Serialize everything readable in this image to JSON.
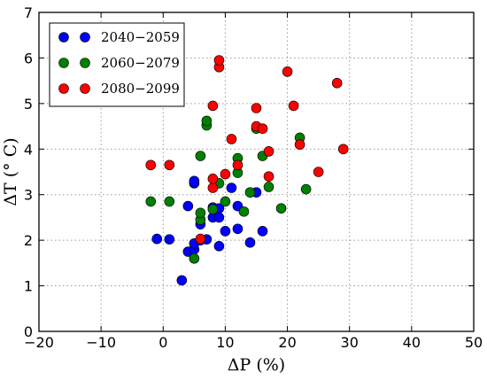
{
  "chart_data": {
    "type": "scatter",
    "title": "",
    "xlabel": "ΔP (%)",
    "ylabel": "ΔT (° C)",
    "xlim": [
      -20,
      50
    ],
    "ylim": [
      0,
      7
    ],
    "xticks": [
      -20,
      -10,
      0,
      10,
      20,
      30,
      40,
      50
    ],
    "yticks": [
      0,
      1,
      2,
      3,
      4,
      5,
      6,
      7
    ],
    "x_tick_labels": [
      "−20",
      "−10",
      "0",
      "10",
      "20",
      "30",
      "40",
      "50"
    ],
    "y_tick_labels": [
      "0",
      "1",
      "2",
      "3",
      "4",
      "5",
      "6",
      "7"
    ],
    "grid": true,
    "legend_position": "top-left",
    "series": [
      {
        "name": "2040−2059",
        "color": "#0000ff",
        "points": [
          [
            -1,
            2.03
          ],
          [
            1,
            2.02
          ],
          [
            3,
            1.12
          ],
          [
            4,
            1.75
          ],
          [
            4,
            2.75
          ],
          [
            5,
            1.8
          ],
          [
            5,
            1.93
          ],
          [
            5,
            3.25
          ],
          [
            5,
            3.3
          ],
          [
            6,
            2.0
          ],
          [
            6,
            2.35
          ],
          [
            7,
            2.02
          ],
          [
            8,
            2.5
          ],
          [
            8,
            2.72
          ],
          [
            9,
            1.87
          ],
          [
            9,
            2.5
          ],
          [
            10,
            2.2
          ],
          [
            11,
            3.15
          ],
          [
            12,
            2.25
          ],
          [
            12,
            2.75
          ],
          [
            14,
            1.95
          ],
          [
            15,
            3.05
          ],
          [
            16,
            2.2
          ],
          [
            9,
            2.7
          ]
        ]
      },
      {
        "name": "2060−2079",
        "color": "#008000",
        "points": [
          [
            -2,
            2.85
          ],
          [
            1,
            2.85
          ],
          [
            5,
            1.6
          ],
          [
            6,
            2.45
          ],
          [
            6,
            2.6
          ],
          [
            6,
            3.85
          ],
          [
            7,
            4.52
          ],
          [
            7,
            4.62
          ],
          [
            8,
            2.68
          ],
          [
            9,
            3.25
          ],
          [
            10,
            2.85
          ],
          [
            12,
            3.48
          ],
          [
            12,
            3.8
          ],
          [
            13,
            2.63
          ],
          [
            14,
            3.05
          ],
          [
            16,
            3.85
          ],
          [
            17,
            3.17
          ],
          [
            19,
            2.7
          ],
          [
            22,
            4.25
          ],
          [
            23,
            3.12
          ],
          [
            15,
            4.45
          ]
        ]
      },
      {
        "name": "2080−2099",
        "color": "#ff0000",
        "points": [
          [
            -2,
            3.65
          ],
          [
            1,
            3.65
          ],
          [
            6,
            2.03
          ],
          [
            8,
            3.15
          ],
          [
            8,
            3.35
          ],
          [
            8,
            4.95
          ],
          [
            9,
            5.8
          ],
          [
            9,
            5.95
          ],
          [
            10,
            3.45
          ],
          [
            11,
            4.22
          ],
          [
            12,
            3.65
          ],
          [
            15,
            4.5
          ],
          [
            15,
            4.9
          ],
          [
            16,
            4.45
          ],
          [
            17,
            3.4
          ],
          [
            17,
            3.95
          ],
          [
            20,
            5.7
          ],
          [
            21,
            4.95
          ],
          [
            22,
            4.1
          ],
          [
            25,
            3.5
          ],
          [
            28,
            5.45
          ],
          [
            29,
            4.0
          ]
        ]
      }
    ]
  }
}
